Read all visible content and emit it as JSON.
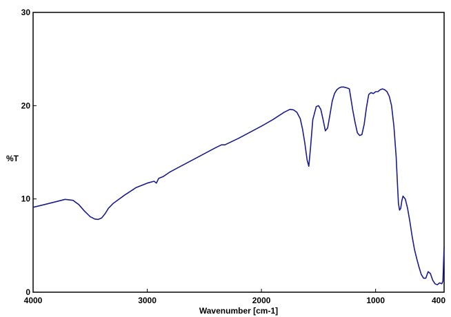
{
  "chart_data": {
    "type": "line",
    "xlabel": "Wavenumber [cm-1]",
    "ylabel": "%T",
    "xlim": [
      4000,
      400
    ],
    "ylim": [
      0,
      30
    ],
    "x_reversed": true,
    "x_ticks": [
      4000,
      3000,
      2000,
      1000,
      400
    ],
    "x_tick_labels": [
      "4000",
      "3000",
      "2000",
      "1000",
      "400"
    ],
    "y_ticks": [
      0,
      10,
      20,
      30
    ],
    "y_tick_labels": [
      "0",
      "10",
      "20",
      "30"
    ],
    "grid": false,
    "line_color": "#1a1a8c",
    "series": [
      {
        "x": [
          4000,
          3900,
          3800,
          3720,
          3650,
          3600,
          3550,
          3500,
          3460,
          3430,
          3400,
          3370,
          3340,
          3300,
          3200,
          3100,
          3000,
          2940,
          2920,
          2900,
          2880,
          2860,
          2800,
          2600,
          2400,
          2350,
          2320,
          2200,
          2000,
          1900,
          1800,
          1750,
          1720,
          1690,
          1660,
          1640,
          1620,
          1600,
          1585,
          1570,
          1550,
          1520,
          1500,
          1480,
          1460,
          1440,
          1420,
          1400,
          1380,
          1360,
          1340,
          1320,
          1300,
          1280,
          1250,
          1230,
          1200,
          1180,
          1160,
          1140,
          1120,
          1100,
          1080,
          1060,
          1040,
          1020,
          1000,
          980,
          960,
          940,
          920,
          900,
          880,
          860,
          840,
          820,
          810,
          800,
          790,
          780,
          770,
          760,
          740,
          720,
          700,
          680,
          660,
          640,
          620,
          600,
          580,
          560,
          540,
          520,
          500,
          480,
          460,
          440,
          420,
          410,
          400
        ],
        "y": [
          9.1,
          9.4,
          9.7,
          9.95,
          9.85,
          9.4,
          8.7,
          8.1,
          7.85,
          7.8,
          7.95,
          8.4,
          9.0,
          9.5,
          10.4,
          11.2,
          11.7,
          11.9,
          11.7,
          12.2,
          12.3,
          12.4,
          12.9,
          14.2,
          15.5,
          15.8,
          15.8,
          16.5,
          17.8,
          18.5,
          19.3,
          19.6,
          19.55,
          19.3,
          18.6,
          17.5,
          16.0,
          14.2,
          13.5,
          15.5,
          18.5,
          19.9,
          20.0,
          19.6,
          18.5,
          17.3,
          17.6,
          19.0,
          20.5,
          21.3,
          21.7,
          21.9,
          22.0,
          22.0,
          21.9,
          21.8,
          19.5,
          18.2,
          17.1,
          16.8,
          16.9,
          18.0,
          19.8,
          21.2,
          21.4,
          21.3,
          21.5,
          21.5,
          21.7,
          21.8,
          21.7,
          21.5,
          21.0,
          20.0,
          17.8,
          14.5,
          12.0,
          9.5,
          8.8,
          9.0,
          9.8,
          10.3,
          10.0,
          9.0,
          7.6,
          6.0,
          4.6,
          3.6,
          2.7,
          1.9,
          1.5,
          1.5,
          2.2,
          2.0,
          1.3,
          0.9,
          0.8,
          1.0,
          0.9,
          1.2,
          4.9
        ]
      }
    ]
  }
}
